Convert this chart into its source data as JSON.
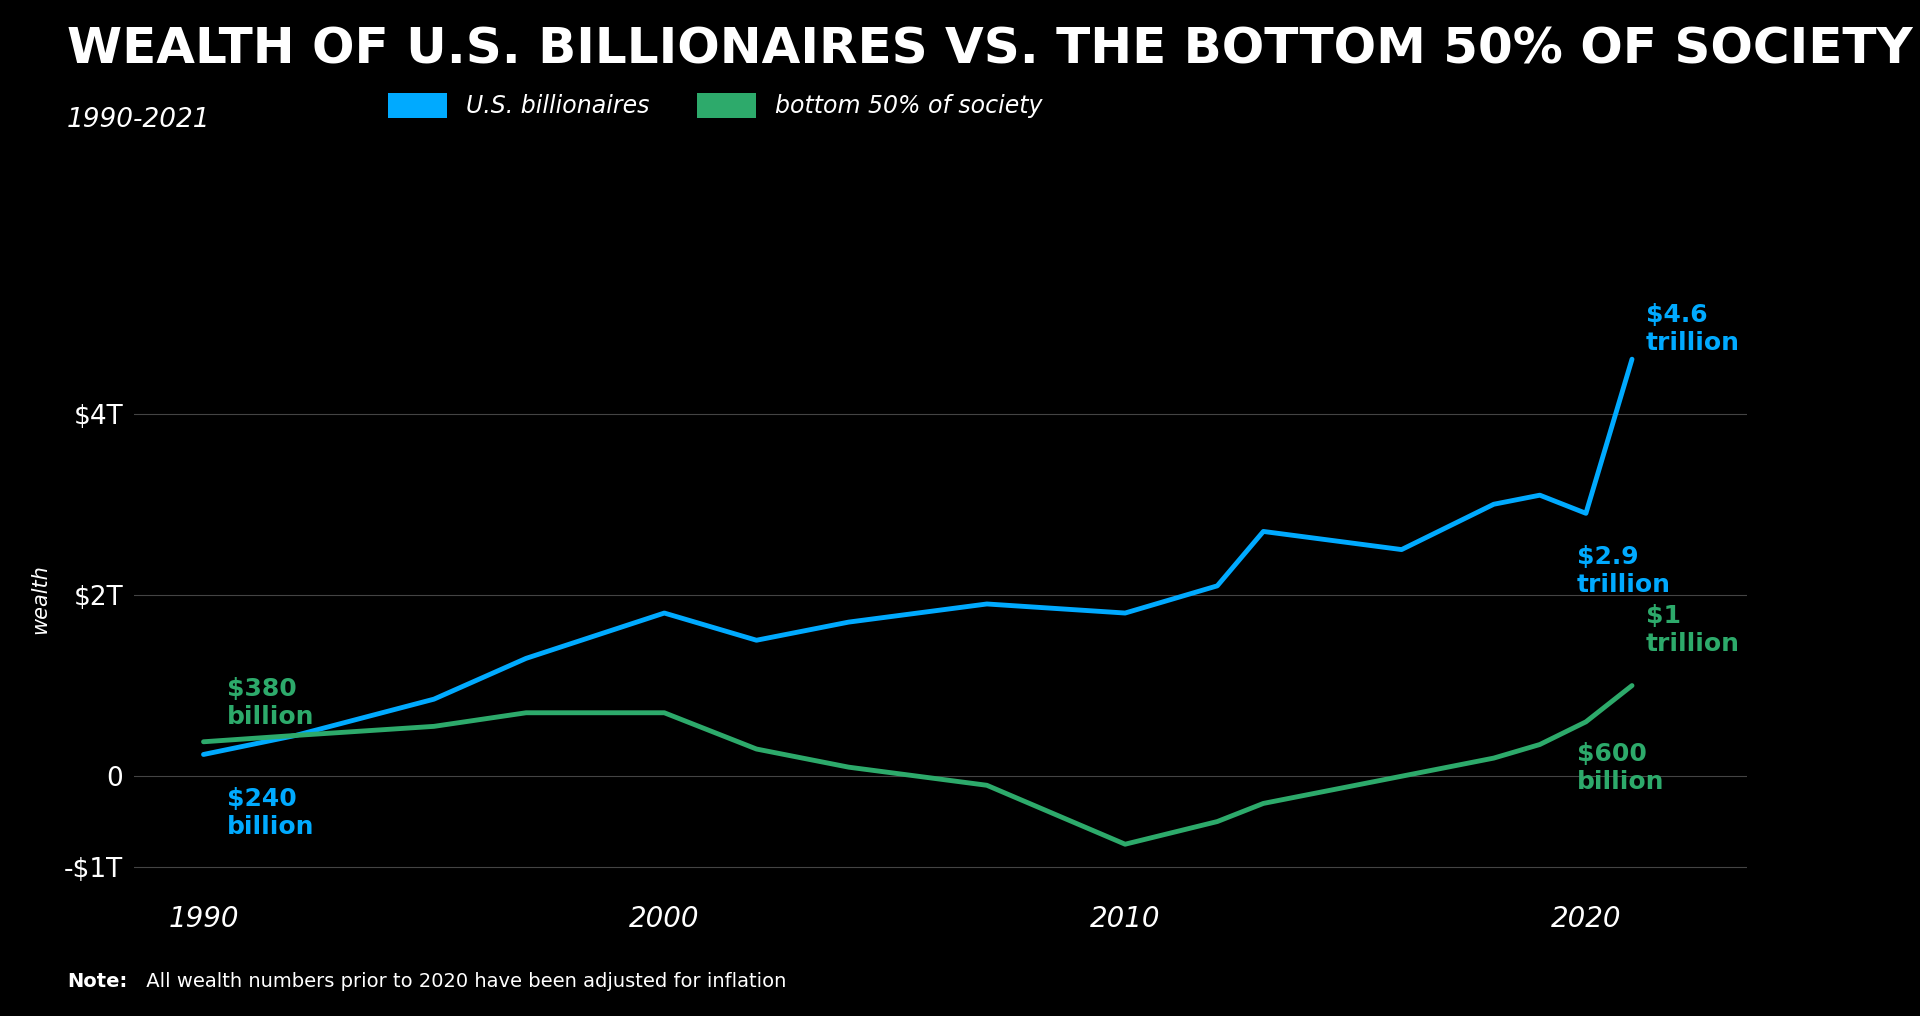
{
  "title": "WEALTH OF U.S. BILLIONAIRES VS. THE BOTTOM 50% OF SOCIETY",
  "subtitle": "1990-2021",
  "note_bold": "Note:",
  "note_regular": " All wealth numbers prior to 2020 have been adjusted for inflation",
  "background_color": "#000000",
  "text_color": "#ffffff",
  "ylabel": "wealth",
  "billionaires_color": "#00aaff",
  "bottom50_color": "#2daa6b",
  "billionaires_label": "U.S. billionaires",
  "bottom50_label": "bottom 50% of society",
  "billionaires_x": [
    1990,
    1992,
    1995,
    1997,
    2000,
    2002,
    2004,
    2007,
    2010,
    2012,
    2013,
    2016,
    2018,
    2019,
    2020,
    2021
  ],
  "billionaires_y": [
    0.24,
    0.45,
    0.85,
    1.3,
    1.8,
    1.5,
    1.7,
    1.9,
    1.8,
    2.1,
    2.7,
    2.5,
    3.0,
    3.1,
    2.9,
    4.6
  ],
  "bottom50_x": [
    1990,
    1992,
    1995,
    1997,
    2000,
    2002,
    2004,
    2007,
    2010,
    2012,
    2013,
    2016,
    2018,
    2019,
    2020,
    2021
  ],
  "bottom50_y": [
    0.38,
    0.45,
    0.55,
    0.7,
    0.7,
    0.3,
    0.1,
    -0.1,
    -0.75,
    -0.5,
    -0.3,
    0.0,
    0.2,
    0.35,
    0.6,
    1.0
  ],
  "xlim": [
    1988.5,
    2023.5
  ],
  "ylim": [
    -1.3,
    5.2
  ],
  "yticks": [
    -1,
    0,
    2,
    4
  ],
  "ytick_labels": [
    "-$1T",
    "0",
    "$2T",
    "$4T"
  ],
  "xticks": [
    1990,
    2000,
    2010,
    2020
  ],
  "grid_color": "#444444"
}
